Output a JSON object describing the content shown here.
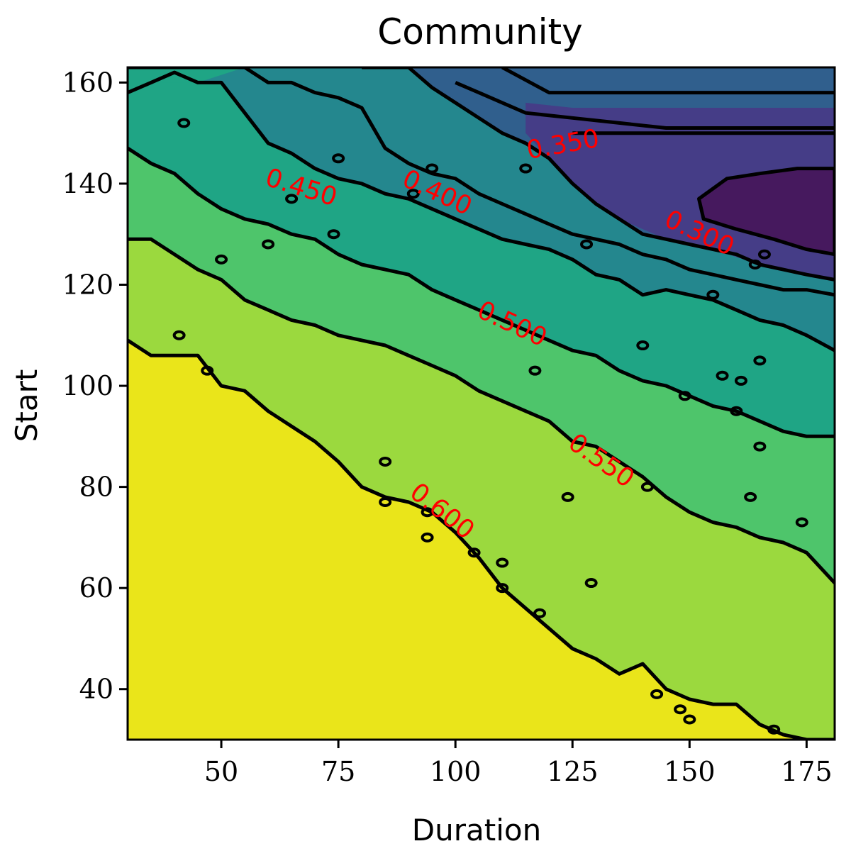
{
  "chart_data": {
    "type": "contour",
    "title": "Community",
    "xlabel": "Duration",
    "ylabel": "Start",
    "xlim": [
      30,
      181
    ],
    "ylim": [
      30,
      163
    ],
    "xticks": [
      50,
      75,
      100,
      125,
      150,
      175
    ],
    "yticks": [
      40,
      60,
      80,
      100,
      120,
      140,
      160
    ],
    "colormap": "viridis",
    "levels": [
      {
        "value": 0.25,
        "color": "#46195e"
      },
      {
        "value": 0.3,
        "color": "#453d87"
      },
      {
        "value": 0.35,
        "color": "#305f8d"
      },
      {
        "value": 0.4,
        "color": "#24878e"
      },
      {
        "value": 0.45,
        "color": "#1fa585"
      },
      {
        "value": 0.5,
        "color": "#4ec56b"
      },
      {
        "value": 0.55,
        "color": "#9bd93e"
      },
      {
        "value": 0.6,
        "color": "#eae51a"
      }
    ],
    "contour_labels": [
      {
        "text": "0.300",
        "x": 152,
        "y": 130,
        "angle": 25
      },
      {
        "text": "0.350",
        "x": 123,
        "y": 147.5,
        "angle": -10
      },
      {
        "text": "0.400",
        "x": 96,
        "y": 138,
        "angle": 25
      },
      {
        "text": "0.450",
        "x": 67,
        "y": 139,
        "angle": 17
      },
      {
        "text": "0.500",
        "x": 112,
        "y": 112,
        "angle": 25
      },
      {
        "text": "0.550",
        "x": 131,
        "y": 85,
        "angle": 35
      },
      {
        "text": "0.600",
        "x": 97,
        "y": 75,
        "angle": 38
      }
    ]
  }
}
